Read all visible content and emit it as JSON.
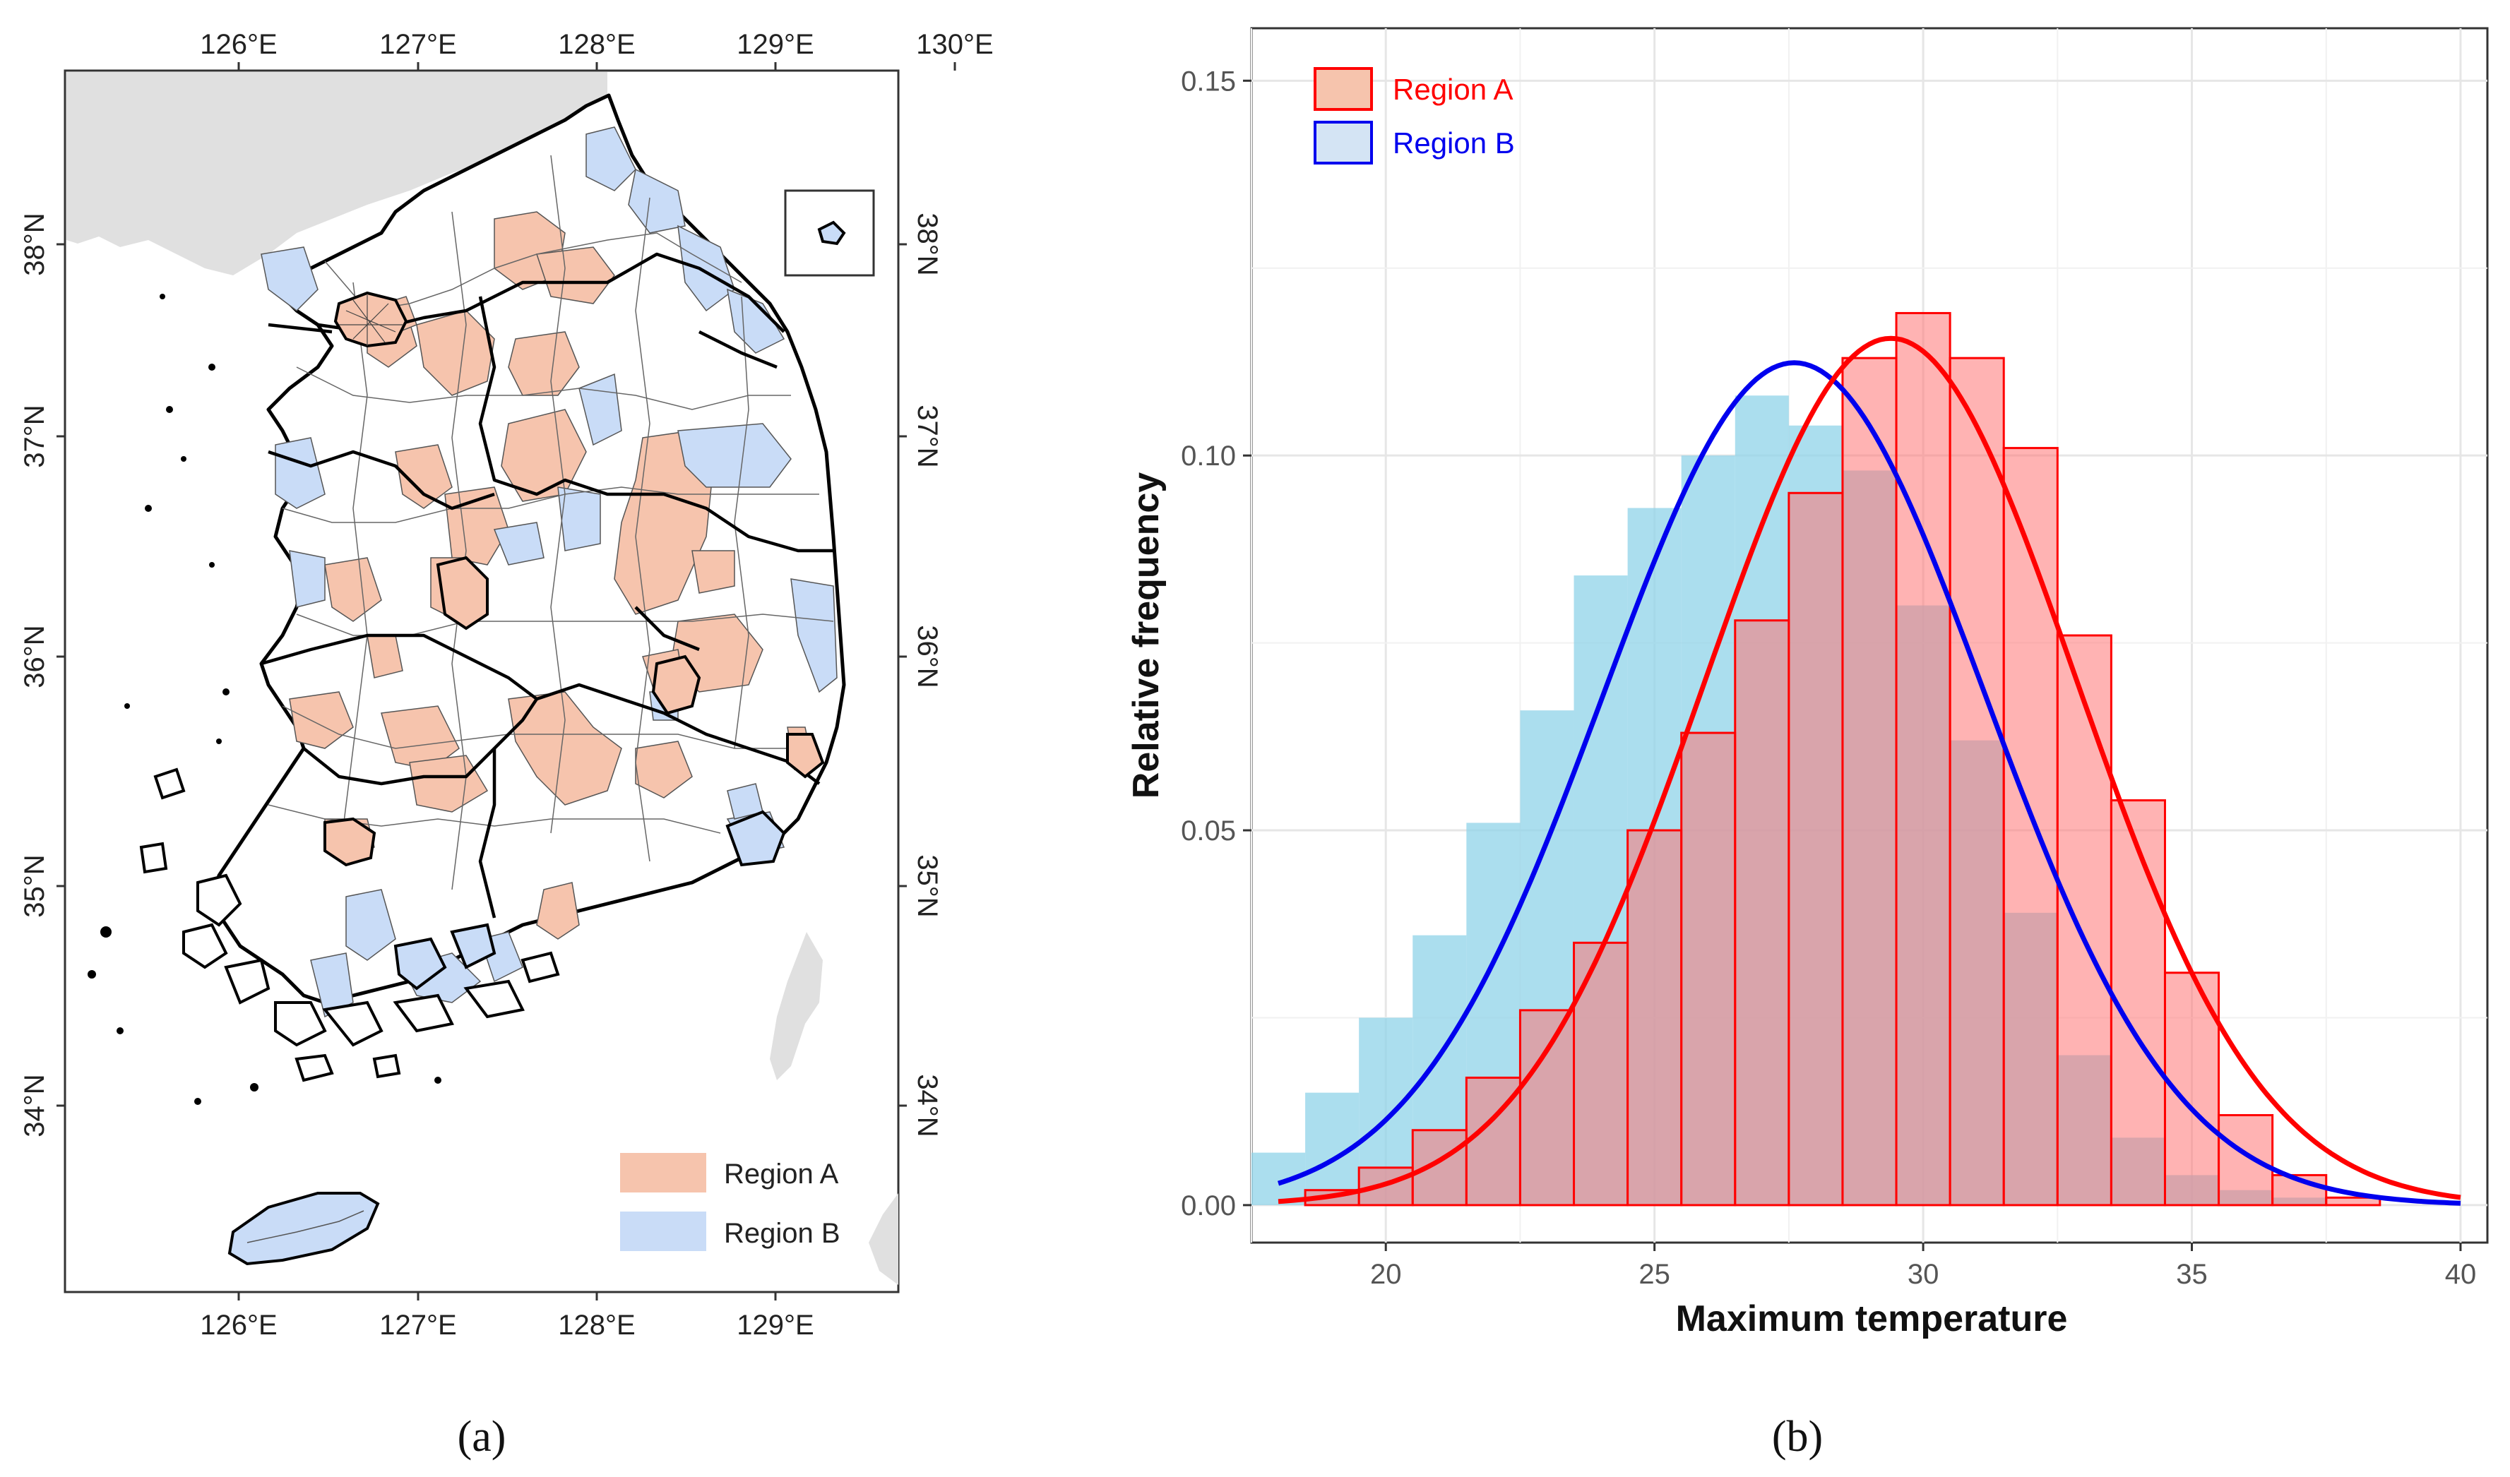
{
  "panel_a": {
    "label": "(a)",
    "lon_ticks": [
      "126°E",
      "127°E",
      "128°E",
      "129°E",
      "130°E"
    ],
    "lon_ticks_bottom": [
      "126°E",
      "127°E",
      "128°E",
      "129°E"
    ],
    "lat_ticks": [
      "38°N",
      "37°N",
      "36°N",
      "35°N",
      "34°N"
    ],
    "legend": [
      {
        "label": "Region A",
        "color": "#f6c4ad"
      },
      {
        "label": "Region B",
        "color": "#c9dcf7"
      }
    ]
  },
  "panel_b": {
    "label": "(b)",
    "legend": [
      {
        "label": "Region A",
        "color": "#ff0000"
      },
      {
        "label": "Region B",
        "color": "#0000ee"
      }
    ]
  },
  "chart_data": [
    {
      "type": "map",
      "title": "",
      "categories": [
        "Region A",
        "Region B"
      ],
      "xlabel": "",
      "ylabel": ""
    },
    {
      "type": "bar",
      "title": "",
      "xlabel": "Maximum temperature",
      "ylabel": "Relative frequency",
      "xlim": [
        17.5,
        40.5
      ],
      "ylim": [
        -0.005,
        0.157
      ],
      "x_ticks": [
        "20",
        "25",
        "30",
        "35",
        "40"
      ],
      "y_ticks": [
        "0.00",
        "0.05",
        "0.10",
        "0.15"
      ],
      "bin_width": 1,
      "series": [
        {
          "name": "Region A",
          "color": "#ff0000",
          "fill": "#ff7575",
          "bin_centers": [
            19,
            20,
            21,
            22,
            23,
            24,
            25,
            26,
            27,
            28,
            29,
            30,
            31,
            32,
            33,
            34,
            35,
            36,
            37,
            38
          ],
          "values": [
            0.002,
            0.005,
            0.01,
            0.017,
            0.026,
            0.035,
            0.05,
            0.063,
            0.078,
            0.095,
            0.113,
            0.119,
            0.113,
            0.101,
            0.076,
            0.054,
            0.031,
            0.012,
            0.004,
            0.001
          ],
          "density_peak": 29.4,
          "density_sd": 3.45
        },
        {
          "name": "Region B",
          "color": "#0000ee",
          "fill": "#8fd3e8",
          "bin_centers": [
            18,
            19,
            20,
            21,
            22,
            23,
            24,
            25,
            26,
            27,
            28,
            29,
            30,
            31,
            32,
            33,
            34,
            35,
            36,
            37
          ],
          "values": [
            0.007,
            0.015,
            0.025,
            0.036,
            0.051,
            0.066,
            0.084,
            0.093,
            0.1,
            0.108,
            0.104,
            0.098,
            0.08,
            0.062,
            0.039,
            0.02,
            0.009,
            0.004,
            0.002,
            0.001
          ],
          "density_peak": 27.6,
          "density_sd": 3.55
        }
      ]
    }
  ]
}
